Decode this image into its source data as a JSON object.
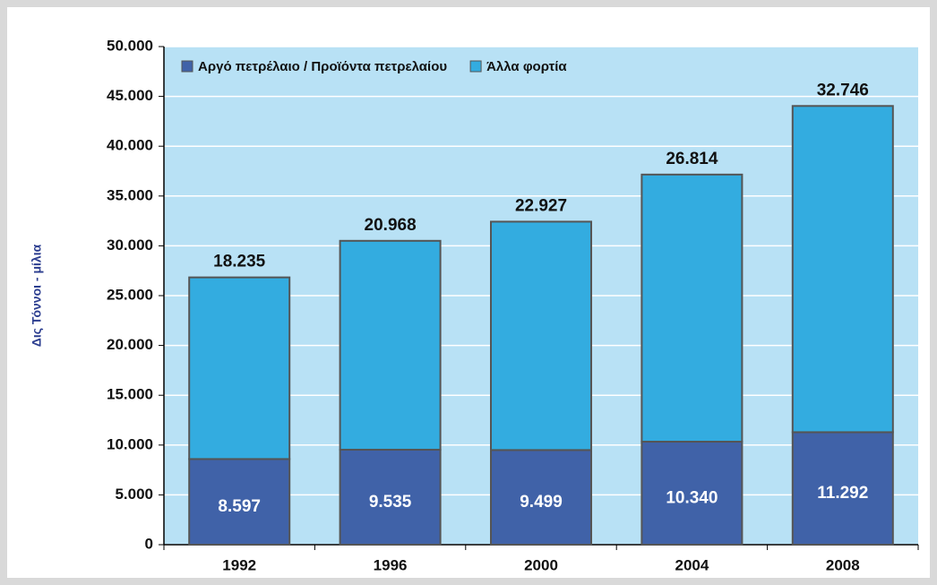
{
  "chart_data": {
    "type": "stacked_bar",
    "y_label": "Δις Τόννοι - μίλια",
    "categories": [
      "1992",
      "1996",
      "2000",
      "2004",
      "2008"
    ],
    "series": [
      {
        "name": "Αργό πετρέλαιο / Προϊόντα πετρελαίου",
        "color": "#4062a8",
        "values": [
          8597,
          9535,
          9499,
          10340,
          11292
        ],
        "value_labels": [
          "8.597",
          "9.535",
          "9.499",
          "10.340",
          "11.292"
        ]
      },
      {
        "name": "Άλλα φορτία",
        "color": "#33ace0",
        "values": [
          18235,
          20968,
          22927,
          26814,
          32746
        ],
        "value_labels": [
          "18.235",
          "20.968",
          "22.927",
          "26.814",
          "32.746"
        ]
      }
    ],
    "ylim": [
      0,
      50000
    ],
    "yticks": [
      0,
      {
        "value": 5000,
        "label": "5.000"
      },
      {
        "value": 10000,
        "label": "10.000"
      },
      {
        "value": 15000,
        "label": "15.000"
      },
      {
        "value": 20000,
        "label": "20.000"
      },
      {
        "value": 25000,
        "label": "25.000"
      },
      {
        "value": 30000,
        "label": "30.000"
      },
      {
        "value": 35000,
        "label": "35.000"
      },
      {
        "value": 40000,
        "label": "40.000"
      },
      {
        "value": 45000,
        "label": "45.000"
      },
      {
        "value": 50000,
        "label": "50.000"
      }
    ],
    "grid": true,
    "legend": "top-left"
  }
}
